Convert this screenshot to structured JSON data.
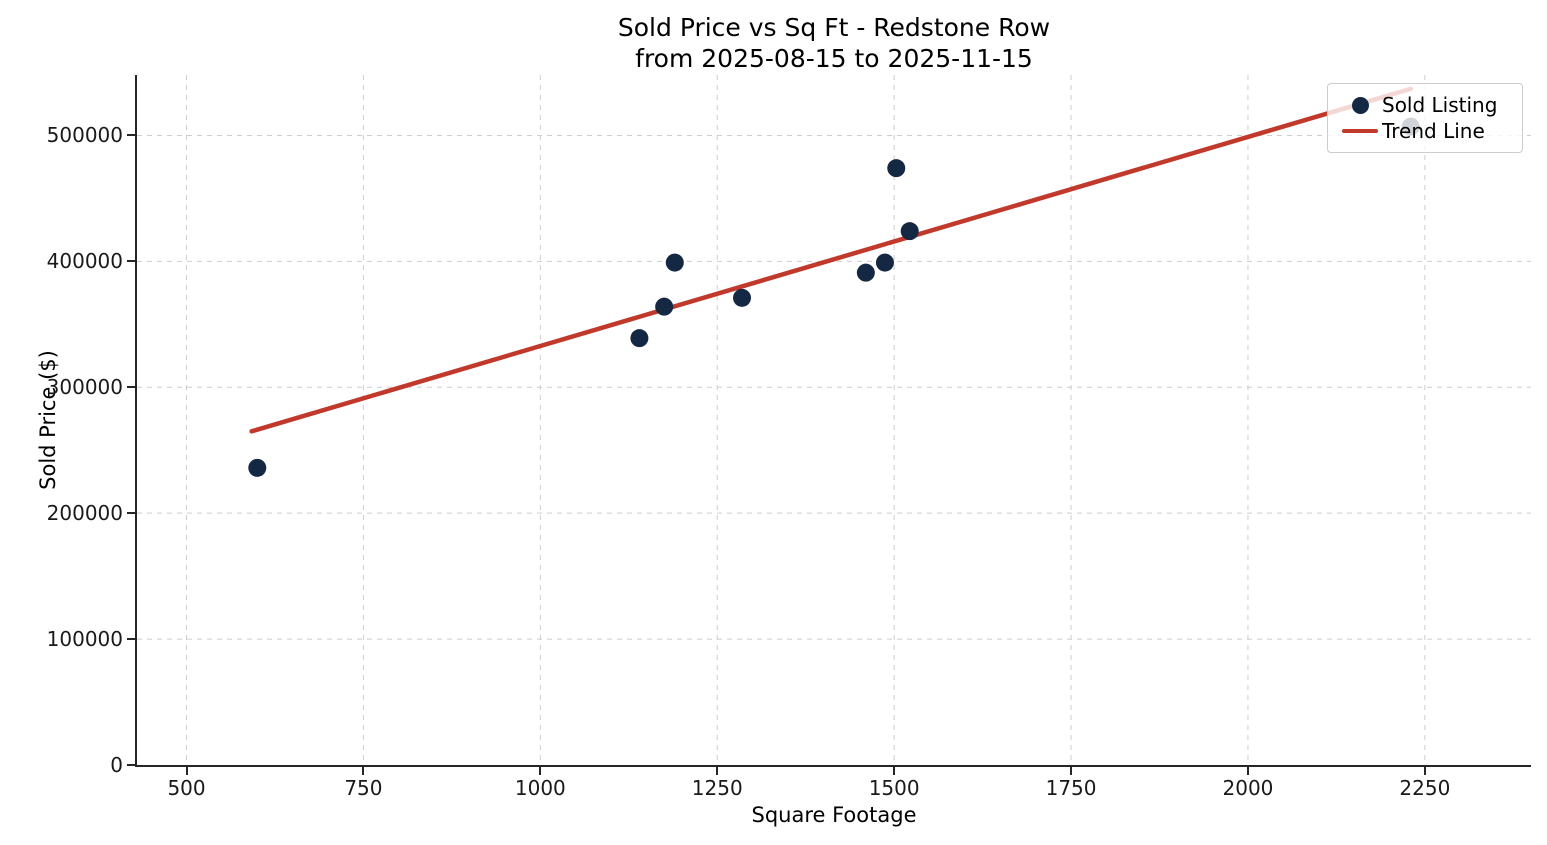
{
  "figure": {
    "title": "Sold Price vs Sq Ft - Redstone Row",
    "subtitle": "from 2025-08-15 to 2025-11-15",
    "xlabel": "Square Footage",
    "ylabel": "Sold Price ($)"
  },
  "legend": {
    "position": "upper right",
    "items": [
      {
        "label": "Sold Listing",
        "marker": "dot"
      },
      {
        "label": "Trend Line",
        "marker": "line"
      }
    ]
  },
  "colors": {
    "scatter": "#142843",
    "trend": "#c0392b",
    "grid": "#cdcdcd",
    "spine": "#262626",
    "text": "#1a1a1a",
    "legend_border": "#cccccc"
  },
  "chart_data": {
    "type": "scatter",
    "title": "Sold Price vs Sq Ft - Redstone Row\nfrom 2025-08-15 to 2025-11-15",
    "xlabel": "Square Footage",
    "ylabel": "Sold Price ($)",
    "xlim": [
      430,
      2400
    ],
    "ylim": [
      0,
      548000
    ],
    "x_ticks": [
      500,
      750,
      1000,
      1250,
      1500,
      1750,
      2000,
      2250
    ],
    "y_ticks": [
      0,
      100000,
      200000,
      300000,
      400000,
      500000
    ],
    "grid": {
      "enabled": true,
      "style": "dashed",
      "axes": "both"
    },
    "legend_position": "upper right",
    "series": [
      {
        "name": "Sold Listing",
        "type": "scatter",
        "color": "#142843",
        "points": [
          [
            600,
            236000
          ],
          [
            1140,
            339000
          ],
          [
            1175,
            364000
          ],
          [
            1190,
            399000
          ],
          [
            1285,
            371000
          ],
          [
            1460,
            391000
          ],
          [
            1487,
            399000
          ],
          [
            1503,
            474000
          ],
          [
            1522,
            424000
          ],
          [
            2230,
            507000
          ]
        ]
      },
      {
        "name": "Trend Line",
        "type": "line",
        "color": "#c0392b",
        "slope_dollars_per_sqft": 166,
        "points": [
          [
            592,
            265000
          ],
          [
            2230,
            537000
          ]
        ]
      }
    ]
  }
}
